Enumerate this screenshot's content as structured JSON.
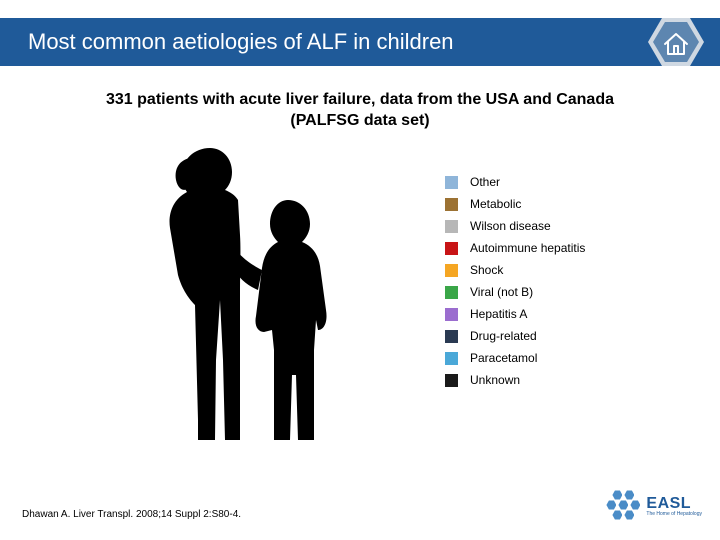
{
  "header": {
    "title": "Most common aetiologies of ALF in children",
    "bar_color": "#1f5a99",
    "title_color": "#ffffff",
    "title_fontsize": 22
  },
  "home_icon": {
    "hex_fill": "#5d86b0",
    "hex_stroke": "#cfd8e2",
    "house_stroke": "#ffffff"
  },
  "subtitle": {
    "line1": "331 patients with acute liver failure, data from the USA and Canada",
    "line2": "(PALFSG data set)",
    "fontsize": 16,
    "fontweight": "bold",
    "color": "#000000"
  },
  "silhouette": {
    "fill": "#000000"
  },
  "legend": {
    "fontsize": 12,
    "swatch_size": 13,
    "row_gap": 8,
    "items": [
      {
        "label": "Other",
        "color": "#8fb5d9"
      },
      {
        "label": "Metabolic",
        "color": "#9c7233"
      },
      {
        "label": "Wilson disease",
        "color": "#b7b7b7"
      },
      {
        "label": "Autoimmune hepatitis",
        "color": "#c81416"
      },
      {
        "label": "Shock",
        "color": "#f5a623"
      },
      {
        "label": "Viral (not B)",
        "color": "#3aa648"
      },
      {
        "label": "Hepatitis A",
        "color": "#9b6dcf"
      },
      {
        "label": "Drug-related",
        "color": "#2a3a52"
      },
      {
        "label": "Paracetamol",
        "color": "#4aa8d8"
      },
      {
        "label": "Unknown",
        "color": "#1a1a1a"
      }
    ]
  },
  "citation": {
    "text": "Dhawan A. Liver Transpl. 2008;14 Suppl 2:S80-4.",
    "fontsize": 10,
    "color": "#000000"
  },
  "logo": {
    "main": "EASL",
    "sub": "The Home of Hepatology",
    "color": "#1f5a99",
    "hex_color": "#4a8cc7"
  }
}
